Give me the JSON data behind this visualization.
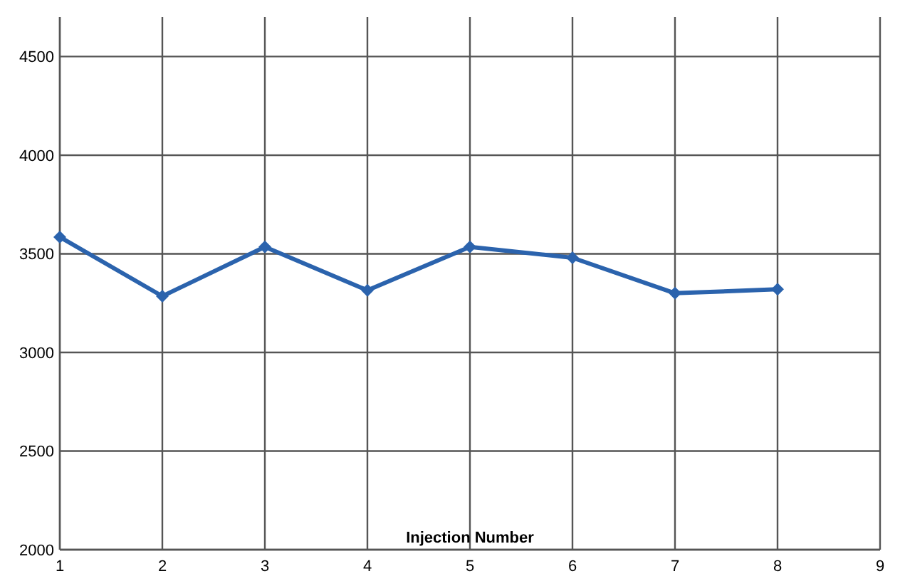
{
  "chart_data": {
    "type": "line",
    "xlabel": "Injection Number",
    "x": [
      1,
      2,
      3,
      4,
      5,
      6,
      7,
      8
    ],
    "series": [
      {
        "color": "#2b63ad",
        "values": [
          3585,
          3285,
          3535,
          3315,
          3535,
          3480,
          3300,
          3320
        ]
      }
    ],
    "xlim": [
      1,
      9
    ],
    "xticks": [
      1,
      2,
      3,
      4,
      5,
      6,
      7,
      8,
      9
    ],
    "ylim": [
      2000,
      4700
    ],
    "yticks": [
      2000,
      2500,
      3000,
      3500,
      4000,
      4500
    ],
    "grid": true,
    "marker": "diamond",
    "line_style": "solid"
  }
}
